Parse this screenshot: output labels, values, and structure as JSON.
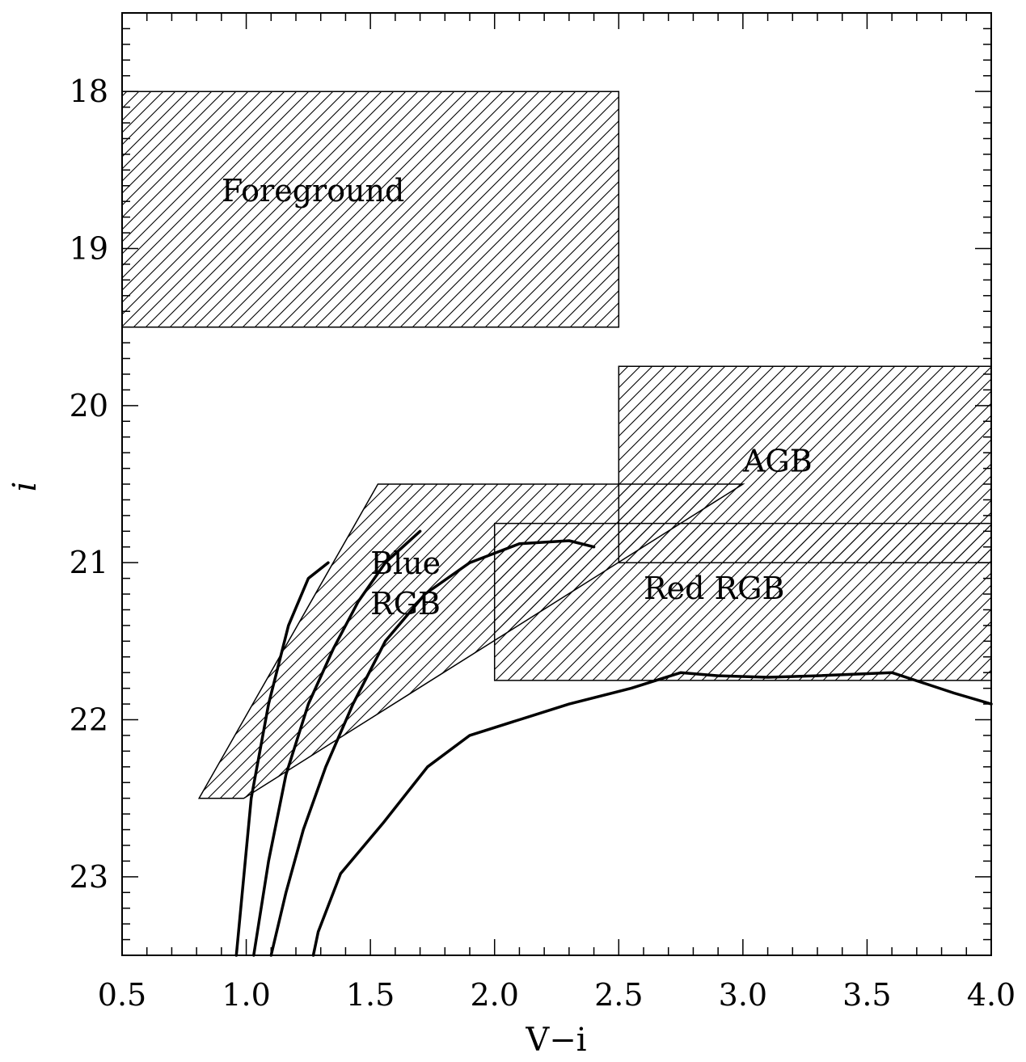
{
  "chart_data": {
    "type": "line",
    "xlabel": "V−i",
    "ylabel": "i",
    "xlim": [
      0.5,
      4.0
    ],
    "ylim": [
      23.5,
      17.5
    ],
    "y_inverted": true,
    "xticks": [
      "0.5",
      "1.0",
      "1.5",
      "2.0",
      "2.5",
      "3.0",
      "3.5",
      "4.0"
    ],
    "yticks": [
      "18",
      "19",
      "20",
      "21",
      "22",
      "23"
    ],
    "regions": [
      {
        "name": "Foreground",
        "hatched": true,
        "label_pos": [
          0.9,
          18.7
        ],
        "polygon": [
          [
            0.5,
            18.0
          ],
          [
            2.5,
            18.0
          ],
          [
            2.5,
            19.5
          ],
          [
            0.5,
            19.5
          ]
        ]
      },
      {
        "name": "AGB",
        "hatched": true,
        "label_pos": [
          3.0,
          20.42
        ],
        "polygon": [
          [
            2.5,
            19.75
          ],
          [
            4.0,
            19.75
          ],
          [
            4.0,
            21.0
          ],
          [
            2.5,
            21.0
          ]
        ]
      },
      {
        "name": "Blue RGB",
        "label_lines": [
          "Blue",
          "RGB"
        ],
        "hatched": true,
        "label_pos": [
          1.5,
          21.07
        ],
        "polygon": [
          [
            1.53,
            20.5
          ],
          [
            3.0,
            20.5
          ],
          [
            0.99,
            22.5
          ],
          [
            0.81,
            22.5
          ]
        ]
      },
      {
        "name": "Red RGB",
        "hatched": true,
        "label_pos": [
          2.6,
          21.23
        ],
        "polygon": [
          [
            2.0,
            20.75
          ],
          [
            4.0,
            20.75
          ],
          [
            4.0,
            21.75
          ],
          [
            2.0,
            21.75
          ]
        ]
      }
    ],
    "series": [
      {
        "x": [
          0.96,
          1.02,
          1.09,
          1.17,
          1.25,
          1.33
        ],
        "y": [
          23.5,
          22.5,
          21.9,
          21.4,
          21.1,
          21.0
        ]
      },
      {
        "x": [
          1.03,
          1.09,
          1.16,
          1.25,
          1.35,
          1.45,
          1.56,
          1.7
        ],
        "y": [
          23.5,
          22.9,
          22.35,
          21.9,
          21.55,
          21.25,
          21.0,
          20.8
        ]
      },
      {
        "x": [
          1.1,
          1.16,
          1.23,
          1.32,
          1.43,
          1.56,
          1.72,
          1.9,
          2.1,
          2.3,
          2.4
        ],
        "y": [
          23.5,
          23.1,
          22.7,
          22.3,
          21.9,
          21.5,
          21.2,
          21.0,
          20.88,
          20.86,
          20.9
        ]
      },
      {
        "x": [
          1.27,
          1.29,
          1.38,
          1.55,
          1.73,
          1.9,
          2.1,
          2.3,
          2.55,
          2.75,
          2.9,
          3.1,
          3.3,
          3.6,
          3.85,
          4.0
        ],
        "y": [
          23.5,
          23.35,
          22.98,
          22.66,
          22.3,
          22.1,
          22.0,
          21.9,
          21.8,
          21.7,
          21.72,
          21.73,
          21.72,
          21.7,
          21.83,
          21.9
        ]
      }
    ]
  }
}
